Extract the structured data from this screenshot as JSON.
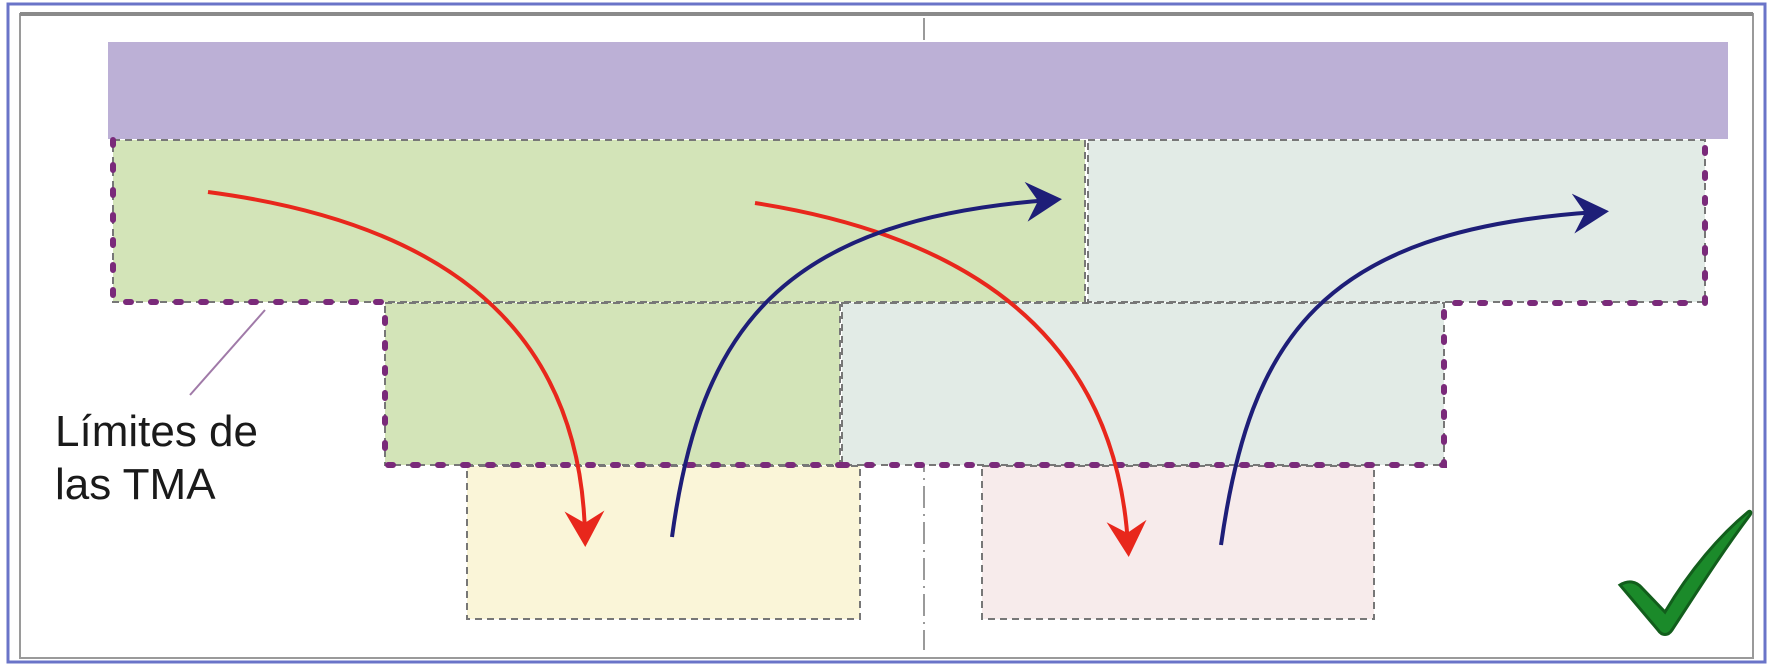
{
  "annotation": {
    "line1": "Límites de",
    "line2": "las TMA"
  },
  "colors": {
    "frame": "#6a74c8",
    "top_band": "#bcb0d6",
    "green_dark": "#d3e4b8",
    "green_light": "#e2ebe6",
    "yellow": "#faf5d8",
    "pink": "#f7ebeb",
    "tma_boundary": "#7a2a7a",
    "red_arrow": "#e8271c",
    "blue_arrow": "#1e1e78",
    "checkmark": "#1b8a2a"
  },
  "icons": {
    "check": "checkmark-icon"
  }
}
